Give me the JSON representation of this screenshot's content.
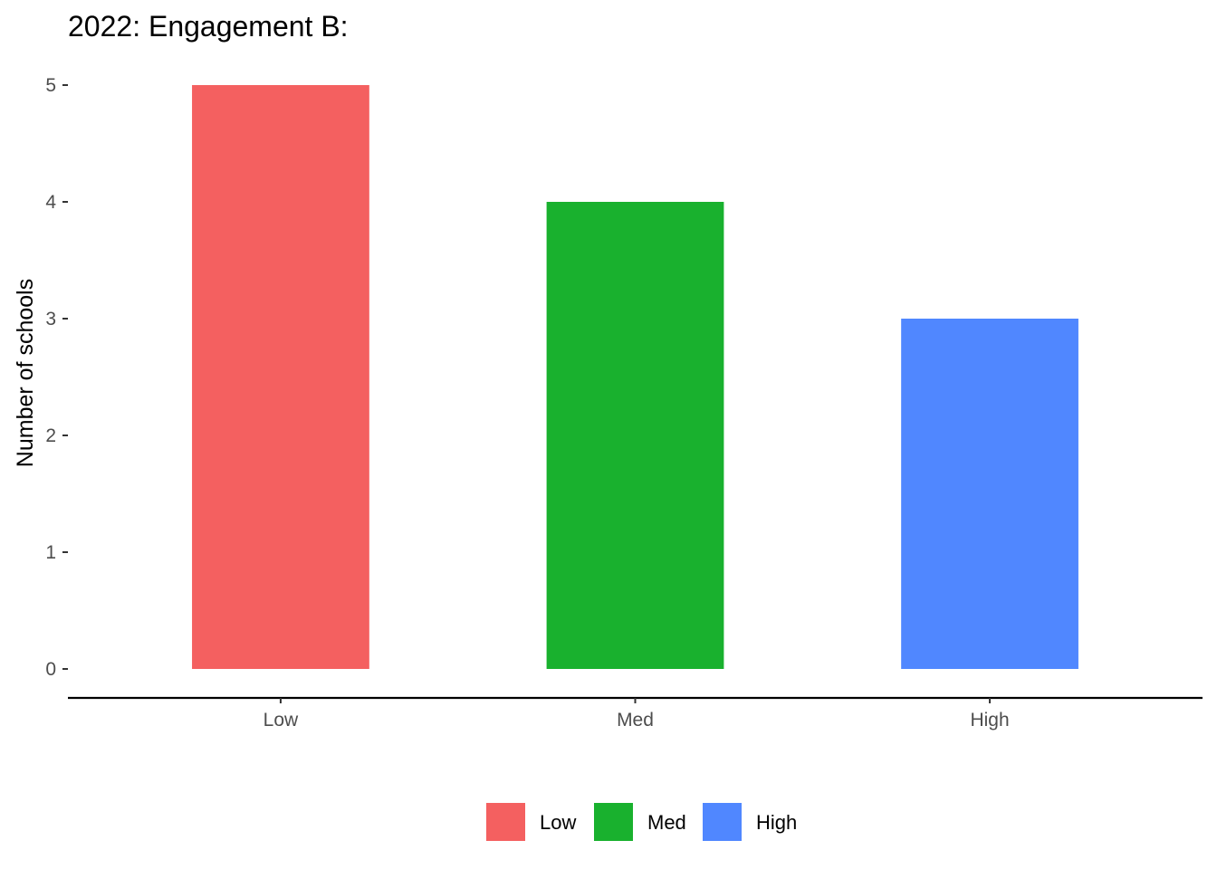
{
  "chart_data": {
    "type": "bar",
    "title": "2022: Engagement B:",
    "xlabel": "",
    "ylabel": "Number of schools",
    "categories": [
      "Low",
      "Med",
      "High"
    ],
    "values": [
      5,
      4,
      3
    ],
    "colors": [
      "#F46060",
      "#19B12E",
      "#5087FF"
    ],
    "ylim": [
      0,
      5
    ],
    "yticks": [
      "0",
      "1",
      "2",
      "3",
      "4",
      "5"
    ],
    "grid": false,
    "legend": {
      "position": "bottom",
      "entries": [
        "Low",
        "Med",
        "High"
      ]
    }
  }
}
